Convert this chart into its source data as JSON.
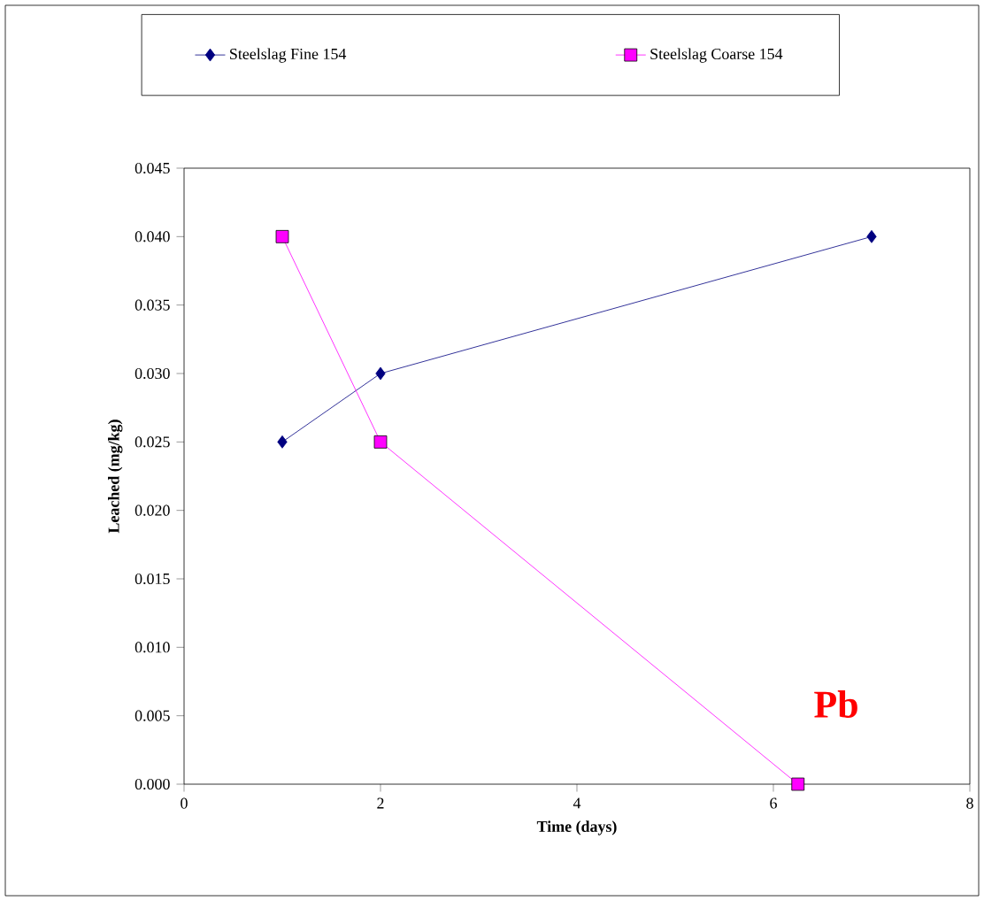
{
  "chart_data": {
    "type": "line",
    "xlabel": "Time (days)",
    "ylabel": "Leached (mg/kg)",
    "xlim": [
      0,
      8
    ],
    "xticks": [
      0,
      2,
      4,
      6,
      8
    ],
    "ylim": [
      0,
      0.045
    ],
    "yticks": [
      {
        "value": 0,
        "label": "0.000"
      },
      {
        "value": 0.005,
        "label": "0.005"
      },
      {
        "value": 0.01,
        "label": "0.010"
      },
      {
        "value": 0.015,
        "label": "0.015"
      },
      {
        "value": 0.02,
        "label": "0.020"
      },
      {
        "value": 0.025,
        "label": "0.025"
      },
      {
        "value": 0.03,
        "label": "0.030"
      },
      {
        "value": 0.035,
        "label": "0.035"
      },
      {
        "value": 0.04,
        "label": "0.040"
      },
      {
        "value": 0.045,
        "label": "0.045"
      }
    ],
    "series": [
      {
        "name": "Steelslag Fine 154",
        "color": "#000080",
        "marker": "diamond",
        "x": [
          1,
          2,
          7
        ],
        "values": [
          0.025,
          0.03,
          0.04
        ]
      },
      {
        "name": "Steelslag Coarse 154",
        "color": "#ff00ff",
        "marker": "square",
        "x": [
          1,
          2,
          6.25
        ],
        "values": [
          0.04,
          0.025,
          0.0
        ]
      }
    ],
    "annotations": [
      "Pb"
    ],
    "legend": "top",
    "grid": false
  }
}
